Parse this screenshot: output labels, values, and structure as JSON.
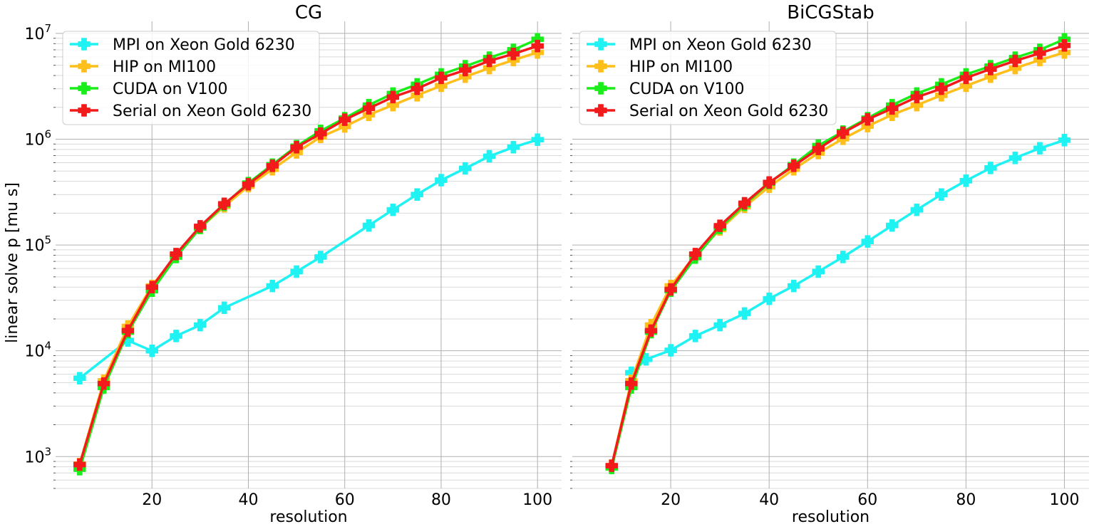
{
  "ylabel": "linear solve p [mu s]",
  "chart_data": [
    {
      "type": "line",
      "title": "CG",
      "xlabel": "resolution",
      "ylabel": "linear solve p [mu s]",
      "xscale": "linear",
      "yscale": "log",
      "xlim": [
        0,
        105
      ],
      "ylim": [
        500,
        13000000
      ],
      "xticks": [
        20,
        40,
        60,
        80,
        100
      ],
      "yticks": [
        "10^3",
        "10^4",
        "10^5",
        "10^6",
        "10^7"
      ],
      "grid": true,
      "legend": "top-left",
      "series": [
        {
          "name": "MPI on Xeon Gold 6230",
          "color": "#1ff2f2",
          "x": [
            5,
            15,
            20,
            25,
            30,
            35,
            45,
            50,
            55,
            65,
            70,
            75,
            80,
            85,
            90,
            95,
            100
          ],
          "y": [
            5500,
            12500,
            10000,
            13800,
            17500,
            25500,
            41000,
            56000,
            77000,
            153000,
            215000,
            300000,
            410000,
            530000,
            690000,
            840000,
            990000
          ]
        },
        {
          "name": "HIP on MI100",
          "color": "#ffbf1a",
          "x": [
            5,
            10,
            15,
            20,
            25,
            30,
            35,
            40,
            45,
            50,
            55,
            60,
            65,
            70,
            75,
            80,
            85,
            90,
            95,
            100
          ],
          "y": [
            850,
            5200,
            17000,
            41000,
            80000,
            145000,
            232000,
            360000,
            520000,
            750000,
            1050000,
            1320000,
            1700000,
            2100000,
            2600000,
            3200000,
            3900000,
            4700000,
            5600000,
            6600000
          ]
        },
        {
          "name": "CUDA on V100",
          "color": "#1aee1a",
          "x": [
            5,
            10,
            15,
            20,
            25,
            30,
            35,
            40,
            45,
            50,
            55,
            60,
            65,
            70,
            75,
            80,
            85,
            90,
            95,
            100
          ],
          "y": [
            760,
            4500,
            15000,
            37000,
            77000,
            145000,
            240000,
            385000,
            575000,
            860000,
            1200000,
            1580000,
            2100000,
            2700000,
            3300000,
            4100000,
            4900000,
            5900000,
            7000000,
            8800000
          ]
        },
        {
          "name": "Serial on Xeon Gold 6230",
          "color": "#f21a1a",
          "x": [
            5,
            10,
            15,
            20,
            25,
            30,
            35,
            40,
            45,
            50,
            55,
            60,
            65,
            70,
            75,
            80,
            85,
            90,
            95,
            100
          ],
          "y": [
            840,
            4900,
            15500,
            40000,
            82000,
            150000,
            245000,
            375000,
            560000,
            840000,
            1130000,
            1530000,
            1960000,
            2500000,
            3000000,
            3800000,
            4500000,
            5500000,
            6400000,
            7600000
          ]
        }
      ]
    },
    {
      "type": "line",
      "title": "BiCGStab",
      "xlabel": "resolution",
      "ylabel": "",
      "xscale": "linear",
      "yscale": "log",
      "xlim": [
        0,
        105
      ],
      "ylim": [
        500,
        13000000
      ],
      "xticks": [
        20,
        40,
        60,
        80,
        100
      ],
      "yticks": [],
      "grid": true,
      "legend": "top-left",
      "series": [
        {
          "name": "MPI on Xeon Gold 6230",
          "color": "#1ff2f2",
          "x": [
            12,
            15,
            20,
            25,
            30,
            35,
            40,
            45,
            50,
            55,
            60,
            65,
            70,
            75,
            80,
            85,
            90,
            95,
            100
          ],
          "y": [
            6200,
            8300,
            10100,
            13800,
            17500,
            22500,
            31000,
            41000,
            56000,
            77000,
            108000,
            153000,
            215000,
            300000,
            405000,
            535000,
            665000,
            820000,
            980000
          ]
        },
        {
          "name": "HIP on MI100",
          "color": "#ffbf1a",
          "x": [
            8,
            12,
            16,
            20,
            25,
            30,
            35,
            40,
            45,
            50,
            55,
            60,
            65,
            70,
            75,
            80,
            85,
            90,
            95,
            100
          ],
          "y": [
            820,
            5200,
            17500,
            41000,
            80000,
            140000,
            230000,
            355000,
            520000,
            740000,
            1010000,
            1330000,
            1700000,
            2100000,
            2600000,
            3200000,
            3900000,
            4700000,
            5600000,
            6600000
          ]
        },
        {
          "name": "CUDA on V100",
          "color": "#1aee1a",
          "x": [
            8,
            12,
            16,
            20,
            25,
            30,
            35,
            40,
            45,
            50,
            55,
            60,
            65,
            70,
            75,
            80,
            85,
            90,
            95,
            100
          ],
          "y": [
            780,
            4500,
            15000,
            37000,
            76000,
            145000,
            240000,
            385000,
            575000,
            870000,
            1180000,
            1580000,
            2100000,
            2700000,
            3300000,
            4100000,
            4900000,
            5900000,
            7000000,
            8800000
          ]
        },
        {
          "name": "Serial on Xeon Gold 6230",
          "color": "#f21a1a",
          "x": [
            8,
            12,
            16,
            20,
            25,
            30,
            35,
            40,
            45,
            50,
            55,
            60,
            65,
            70,
            75,
            80,
            85,
            90,
            95,
            100
          ],
          "y": [
            820,
            4900,
            15500,
            38000,
            82000,
            152000,
            248000,
            390000,
            560000,
            810000,
            1150000,
            1540000,
            1950000,
            2500000,
            3000000,
            3800000,
            4600000,
            5500000,
            6500000,
            7700000
          ]
        }
      ]
    }
  ]
}
